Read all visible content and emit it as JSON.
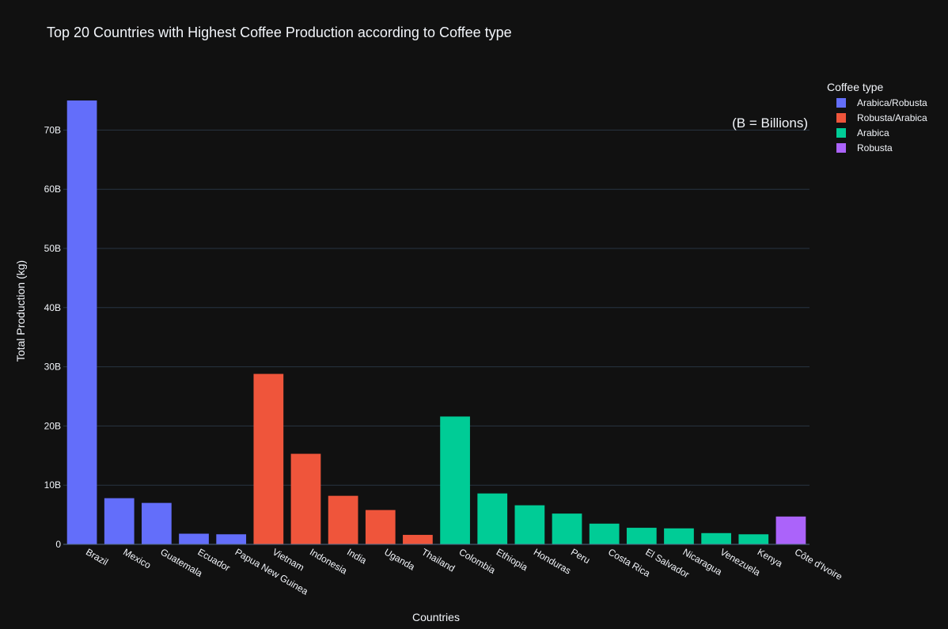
{
  "chart_data": {
    "type": "bar",
    "title": "Top 20 Countries with Highest Coffee Production according to Coffee type",
    "xlabel": "Countries",
    "ylabel": "Total Production (kg)",
    "ylim": [
      0,
      75000000000
    ],
    "yticks": [
      {
        "value": 0,
        "label": "0"
      },
      {
        "value": 10000000000,
        "label": "10B"
      },
      {
        "value": 20000000000,
        "label": "20B"
      },
      {
        "value": 30000000000,
        "label": "30B"
      },
      {
        "value": 40000000000,
        "label": "40B"
      },
      {
        "value": 50000000000,
        "label": "50B"
      },
      {
        "value": 60000000000,
        "label": "60B"
      },
      {
        "value": 70000000000,
        "label": "70B"
      }
    ],
    "grid": true,
    "legend": {
      "title": "Coffee type",
      "placement": "top-right"
    },
    "annotation": "(B = Billions)",
    "series": [
      {
        "name": "Arabica/Robusta",
        "color": "#636efa",
        "categories": [
          "Brazil",
          "Mexico",
          "Guatemala",
          "Ecuador",
          "Papua New Guinea"
        ],
        "values": [
          75000000000,
          7800000000,
          7000000000,
          1800000000,
          1700000000
        ]
      },
      {
        "name": "Robusta/Arabica",
        "color": "#ef553b",
        "categories": [
          "Vietnam",
          "Indonesia",
          "India",
          "Uganda",
          "Thailand"
        ],
        "values": [
          28800000000,
          15300000000,
          8200000000,
          5800000000,
          1600000000
        ]
      },
      {
        "name": "Arabica",
        "color": "#00cc96",
        "categories": [
          "Colombia",
          "Ethiopia",
          "Honduras",
          "Peru",
          "Costa Rica",
          "El Salvador",
          "Nicaragua",
          "Venezuela",
          "Kenya"
        ],
        "values": [
          21600000000,
          8600000000,
          6600000000,
          5200000000,
          3500000000,
          2800000000,
          2700000000,
          1900000000,
          1700000000
        ]
      },
      {
        "name": "Robusta",
        "color": "#ab63fa",
        "categories": [
          "Côte d'Ivoire"
        ],
        "values": [
          4700000000
        ]
      }
    ]
  }
}
